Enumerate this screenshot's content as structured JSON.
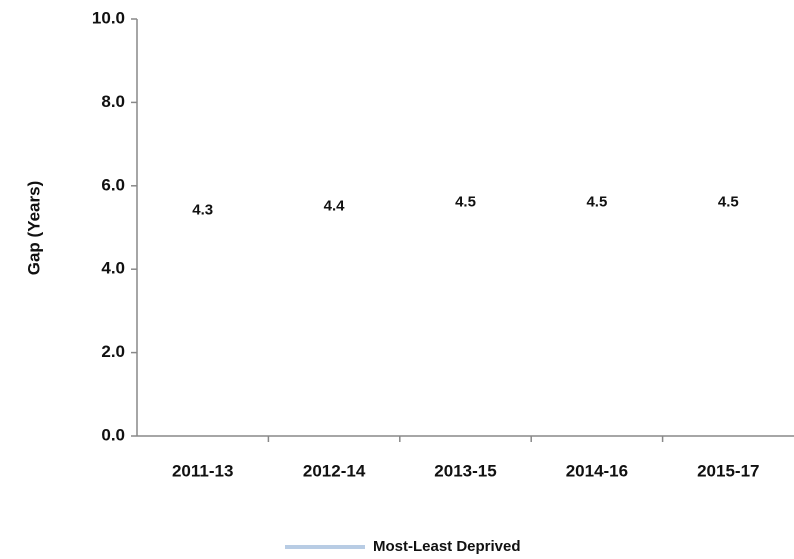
{
  "chart_data": {
    "type": "line",
    "y_label": "Gap (Years)",
    "categories": [
      "2011-13",
      "2012-14",
      "2013-15",
      "2014-16",
      "2015-17"
    ],
    "series": [
      {
        "name": "Most-Least Deprived",
        "color": "#b8cce4",
        "values": [
          4.3,
          4.4,
          4.5,
          4.5,
          4.5
        ]
      }
    ],
    "ylim": [
      0,
      10
    ],
    "yticks": [
      {
        "value": 0,
        "label": "0.0"
      },
      {
        "value": 2,
        "label": "2.0"
      },
      {
        "value": 4,
        "label": "4.0"
      },
      {
        "value": 6,
        "label": "6.0"
      },
      {
        "value": 8,
        "label": "8.0"
      },
      {
        "value": 10,
        "label": "10.0"
      }
    ],
    "grid": false,
    "legend": "bottom"
  }
}
